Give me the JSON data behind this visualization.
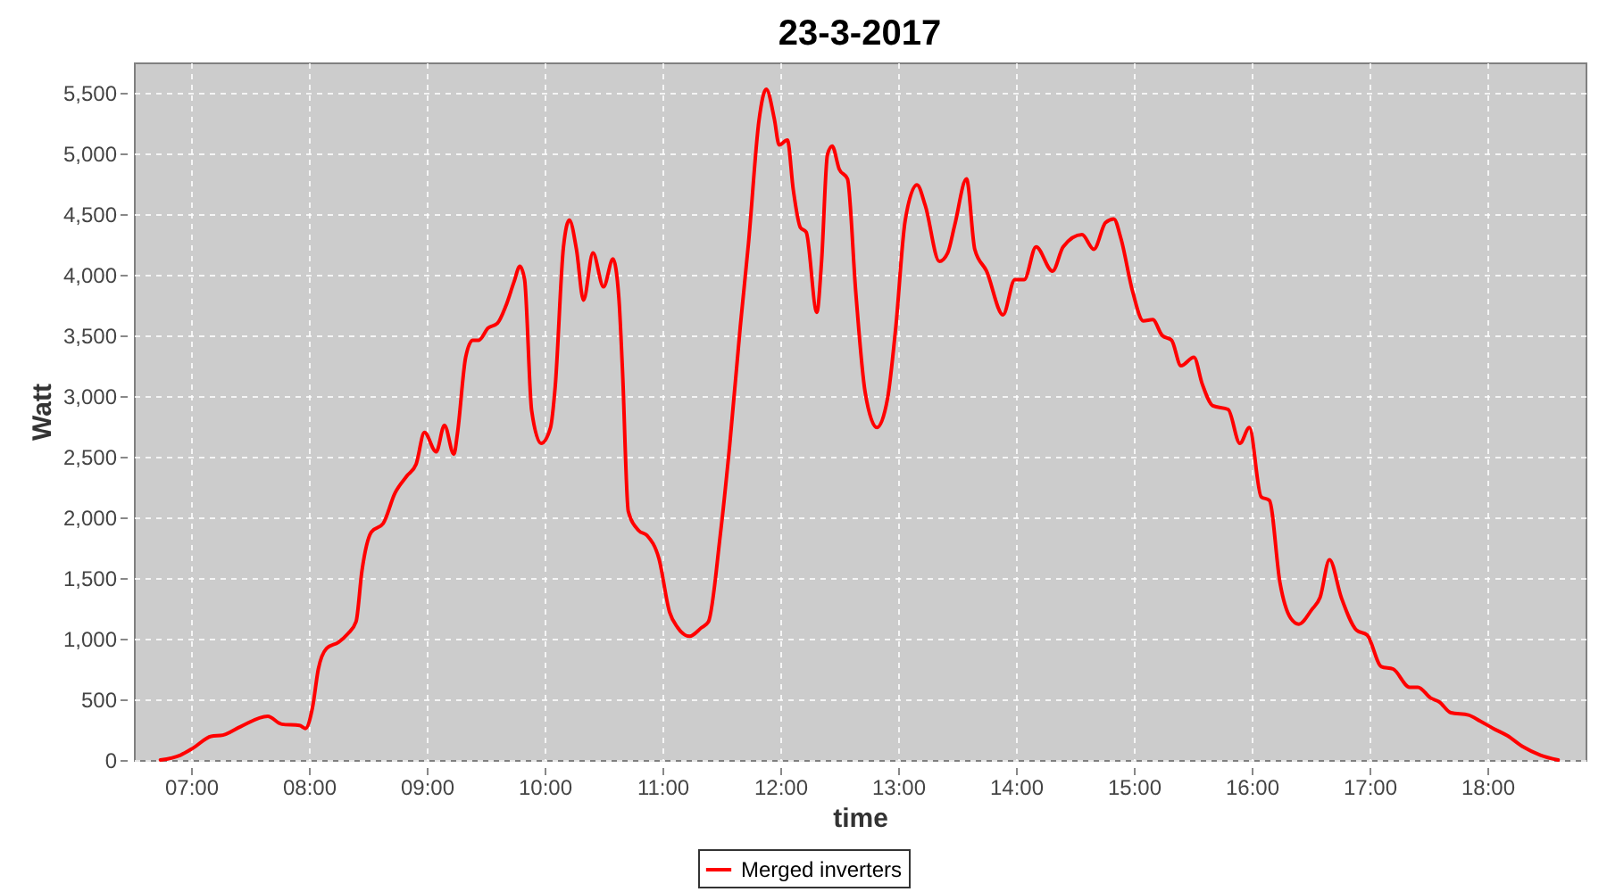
{
  "chart_data": {
    "type": "line",
    "title": "23-3-2017",
    "xlabel": "time",
    "ylabel": "Watt",
    "x": [
      6.74,
      6.91,
      7.02,
      7.17,
      7.27,
      7.42,
      7.65,
      7.77,
      7.92,
      7.97,
      8.03,
      8.08,
      8.15,
      8.25,
      8.33,
      8.4,
      8.45,
      8.53,
      8.63,
      8.73,
      8.83,
      8.91,
      8.98,
      9.08,
      9.15,
      9.23,
      9.26,
      9.33,
      9.39,
      9.44,
      9.52,
      9.6,
      9.67,
      9.74,
      9.79,
      9.83,
      9.89,
      9.97,
      10.05,
      10.09,
      10.16,
      10.21,
      10.27,
      10.33,
      10.41,
      10.5,
      10.58,
      10.63,
      10.66,
      10.71,
      10.8,
      10.87,
      10.97,
      11.06,
      11.13,
      11.23,
      11.33,
      11.39,
      11.49,
      11.57,
      11.66,
      11.73,
      11.82,
      11.88,
      11.95,
      11.99,
      12.06,
      12.11,
      12.17,
      12.22,
      12.31,
      12.35,
      12.4,
      12.44,
      12.5,
      12.57,
      12.64,
      12.72,
      12.82,
      12.91,
      12.98,
      13.06,
      13.16,
      13.23,
      13.35,
      13.42,
      13.48,
      13.58,
      13.65,
      13.75,
      13.89,
      13.99,
      14.07,
      14.17,
      14.31,
      14.4,
      14.56,
      14.66,
      14.76,
      14.83,
      14.89,
      14.99,
      15.08,
      15.16,
      15.24,
      15.32,
      15.4,
      15.51,
      15.58,
      15.67,
      15.8,
      15.9,
      15.98,
      16.08,
      16.15,
      16.24,
      16.33,
      16.4,
      16.51,
      16.58,
      16.66,
      16.76,
      16.89,
      16.98,
      17.1,
      17.2,
      17.34,
      17.41,
      17.52,
      17.59,
      17.69,
      17.84,
      17.94,
      18.05,
      18.17,
      18.3,
      18.45,
      18.6
    ],
    "series": [
      {
        "name": "Merged inverters",
        "color": "#ff0000",
        "values": [
          0,
          40,
          100,
          195,
          205,
          275,
          360,
          295,
          285,
          260,
          430,
          750,
          920,
          970,
          1040,
          1140,
          1560,
          1880,
          1950,
          2200,
          2340,
          2440,
          2700,
          2540,
          2760,
          2520,
          2690,
          3320,
          3460,
          3460,
          3560,
          3600,
          3740,
          3940,
          4070,
          3960,
          2880,
          2610,
          2740,
          3080,
          4230,
          4450,
          4210,
          3790,
          4180,
          3900,
          4130,
          3810,
          3230,
          2050,
          1890,
          1850,
          1660,
          1220,
          1090,
          1020,
          1090,
          1140,
          1850,
          2590,
          3570,
          4260,
          5280,
          5530,
          5280,
          5070,
          5110,
          4700,
          4390,
          4350,
          3690,
          4110,
          4990,
          5060,
          4870,
          4790,
          3860,
          3030,
          2740,
          2980,
          3570,
          4450,
          4740,
          4570,
          4110,
          4180,
          4410,
          4790,
          4210,
          4030,
          3670,
          3960,
          3960,
          4230,
          4030,
          4230,
          4330,
          4210,
          4430,
          4460,
          4300,
          3860,
          3620,
          3630,
          3500,
          3460,
          3250,
          3320,
          3100,
          2920,
          2890,
          2610,
          2740,
          2170,
          2140,
          1460,
          1170,
          1120,
          1240,
          1340,
          1650,
          1340,
          1070,
          1030,
          770,
          750,
          600,
          600,
          510,
          480,
          390,
          370,
          320,
          260,
          200,
          110,
          40,
          0
        ]
      }
    ],
    "xlim": [
      6.515,
      18.833
    ],
    "xticks": [
      {
        "value": 7,
        "label": "07:00"
      },
      {
        "value": 8,
        "label": "08:00"
      },
      {
        "value": 9,
        "label": "09:00"
      },
      {
        "value": 10,
        "label": "10:00"
      },
      {
        "value": 11,
        "label": "11:00"
      },
      {
        "value": 12,
        "label": "12:00"
      },
      {
        "value": 13,
        "label": "13:00"
      },
      {
        "value": 14,
        "label": "14:00"
      },
      {
        "value": 15,
        "label": "15:00"
      },
      {
        "value": 16,
        "label": "16:00"
      },
      {
        "value": 17,
        "label": "17:00"
      },
      {
        "value": 18,
        "label": "18:00"
      }
    ],
    "ylim": [
      0,
      5750
    ],
    "yticks": [
      0,
      500,
      {
        "value": 1000,
        "label": "1,000"
      },
      {
        "value": 1500,
        "label": "1,500"
      },
      {
        "value": 2000,
        "label": "2,000"
      },
      {
        "value": 2500,
        "label": "2,500"
      },
      {
        "value": 3000,
        "label": "3,000"
      },
      {
        "value": 3500,
        "label": "3,500"
      },
      {
        "value": 4000,
        "label": "4,000"
      },
      {
        "value": 4500,
        "label": "4,500"
      },
      {
        "value": 5000,
        "label": "5,000"
      },
      {
        "value": 5500,
        "label": "5,500"
      }
    ],
    "grid": true,
    "legend": "bottom",
    "line_style": "solid"
  }
}
